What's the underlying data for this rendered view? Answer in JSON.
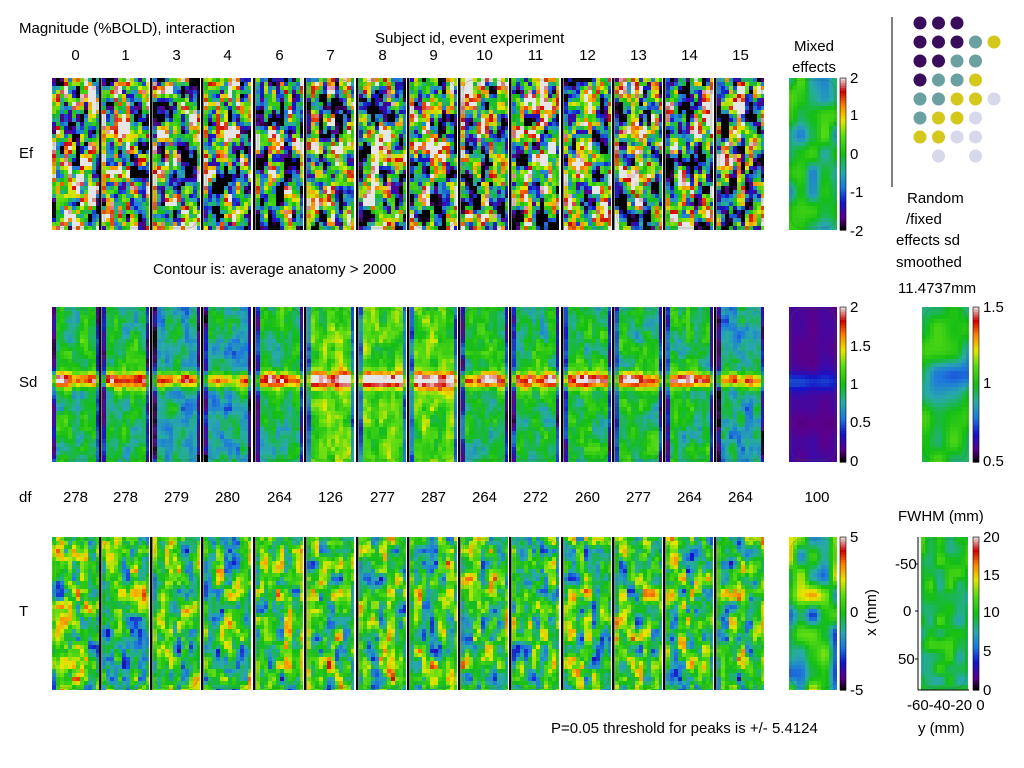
{
  "title": "Magnitude (%BOLD), interaction",
  "subtitle": "Subject id, event experiment",
  "subject_ids": [
    "0",
    "1",
    "3",
    "4",
    "6",
    "7",
    "8",
    "9",
    "10",
    "11",
    "12",
    "13",
    "14",
    "15"
  ],
  "mixed_label_line1": "Mixed",
  "mixed_label_line2": "effects",
  "row_labels": [
    "Ef",
    "Sd",
    "T"
  ],
  "df_label": "df",
  "df_values": [
    "278",
    "278",
    "279",
    "280",
    "264",
    "126",
    "277",
    "287",
    "264",
    "272",
    "260",
    "277",
    "264",
    "264"
  ],
  "df_mixed": "100",
  "contour_note": "Contour is: average anatomy > 2000",
  "rf_label": [
    "Random",
    "/fixed",
    "effects sd",
    "smoothed",
    "11.4737mm"
  ],
  "fwhm_title": "FWHM (mm)",
  "fwhm_xlabel": "y (mm)",
  "fwhm_ylabel": "x (mm)",
  "fwhm_yticks": [
    "-50",
    "0",
    "50"
  ],
  "fwhm_xticks": "-60-40-20 0",
  "threshold_note": "P=0.05 threshold for peaks is +/- 5.4124",
  "colors": {
    "dark_purple": "#3a0c5c",
    "teal": "#6aa0a0",
    "yellow": "#d4c81c",
    "lavender": "#d8d8ec",
    "green": "#10c010",
    "background": "#ffffff"
  },
  "chart_data": [
    {
      "type": "heatmap",
      "title": "Ef",
      "categories": [
        "0",
        "1",
        "3",
        "4",
        "6",
        "7",
        "8",
        "9",
        "10",
        "11",
        "12",
        "13",
        "14",
        "15",
        "Mixed effects"
      ],
      "colorbar_ticks": [
        "2",
        "1",
        "0",
        "-1",
        "-2"
      ],
      "colorbar_range": [
        -2,
        2
      ]
    },
    {
      "type": "heatmap",
      "title": "Sd",
      "categories": [
        "0",
        "1",
        "3",
        "4",
        "6",
        "7",
        "8",
        "9",
        "10",
        "11",
        "12",
        "13",
        "14",
        "15",
        "Mixed effects"
      ],
      "colorbar_ticks": [
        "2",
        "1.5",
        "1",
        "0.5",
        "0"
      ],
      "colorbar_range": [
        0,
        2
      ]
    },
    {
      "type": "heatmap",
      "title": "T",
      "categories": [
        "0",
        "1",
        "3",
        "4",
        "6",
        "7",
        "8",
        "9",
        "10",
        "11",
        "12",
        "13",
        "14",
        "15",
        "Mixed effects"
      ],
      "colorbar_ticks": [
        "5",
        "0",
        "-5"
      ],
      "colorbar_range": [
        -5,
        5
      ]
    },
    {
      "type": "heatmap",
      "title": "Random /fixed effects sd smoothed",
      "colorbar_ticks": [
        "1.5",
        "1",
        "0.5"
      ],
      "colorbar_range": [
        0.5,
        1.5
      ]
    },
    {
      "type": "heatmap",
      "title": "FWHM (mm)",
      "xlabel": "y (mm)",
      "ylabel": "x (mm)",
      "colorbar_ticks": [
        "20",
        "15",
        "10",
        "5",
        "0"
      ],
      "colorbar_range": [
        0,
        20
      ]
    },
    {
      "type": "scatter",
      "rows": [
        [
          "dark_purple",
          "dark_purple",
          "dark_purple"
        ],
        [
          "dark_purple",
          "dark_purple",
          "dark_purple",
          "teal",
          "yellow"
        ],
        [
          "dark_purple",
          "dark_purple",
          "teal",
          "teal"
        ],
        [
          "dark_purple",
          "teal",
          "teal",
          "yellow"
        ],
        [
          "teal",
          "teal",
          "yellow",
          "yellow",
          "lavender"
        ],
        [
          "teal",
          "yellow",
          "yellow",
          "lavender"
        ],
        [
          "yellow",
          "yellow",
          "lavender",
          "lavender"
        ],
        [
          "",
          "lavender",
          "",
          "lavender"
        ]
      ]
    }
  ]
}
